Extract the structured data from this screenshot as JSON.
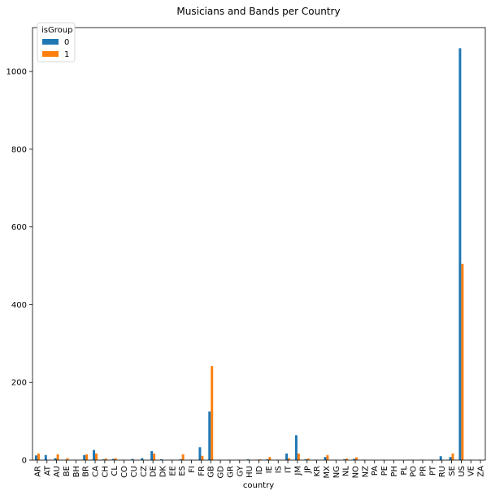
{
  "chart_data": {
    "type": "bar",
    "title": "Musicians and Bands per Country",
    "xlabel": "country",
    "ylabel": "",
    "ylim": [
      0,
      1113
    ],
    "yticks": [
      0,
      200,
      400,
      600,
      800,
      1000
    ],
    "grid": false,
    "legend": {
      "title": "isGroup",
      "placement": "top-left"
    },
    "categories": [
      "AR",
      "AT",
      "AU",
      "BE",
      "BH",
      "BR",
      "CA",
      "CH",
      "CL",
      "CO",
      "CU",
      "CZ",
      "DE",
      "DK",
      "EE",
      "ES",
      "FI",
      "FR",
      "GB",
      "GD",
      "GR",
      "GY",
      "HU",
      "ID",
      "IE",
      "IS",
      "IT",
      "JM",
      "JP",
      "KR",
      "MX",
      "NG",
      "NL",
      "NO",
      "NZ",
      "PA",
      "PE",
      "PH",
      "PL",
      "PO",
      "PR",
      "PT",
      "RU",
      "SE",
      "US",
      "VE",
      "ZA"
    ],
    "series": [
      {
        "name": "0",
        "color": "#1f77b4",
        "values": [
          12,
          13,
          5,
          1,
          1,
          13,
          26,
          2,
          3,
          1,
          3,
          5,
          23,
          2,
          1,
          2,
          1,
          33,
          125,
          1,
          1,
          1,
          2,
          1,
          2,
          1,
          17,
          64,
          2,
          1,
          8,
          1,
          2,
          3,
          1,
          0,
          1,
          0,
          0,
          1,
          1,
          1,
          10,
          8,
          1060,
          1,
          1
        ]
      },
      {
        "name": "1",
        "color": "#ff7f0e",
        "values": [
          17,
          0,
          15,
          5,
          0,
          15,
          17,
          4,
          5,
          0,
          0,
          0,
          17,
          0,
          0,
          15,
          0,
          11,
          242,
          0,
          0,
          0,
          0,
          2,
          8,
          0,
          5,
          17,
          4,
          0,
          13,
          0,
          4,
          7,
          0,
          0,
          0,
          0,
          0,
          0,
          0,
          0,
          0,
          17,
          505,
          0,
          0
        ]
      }
    ]
  }
}
